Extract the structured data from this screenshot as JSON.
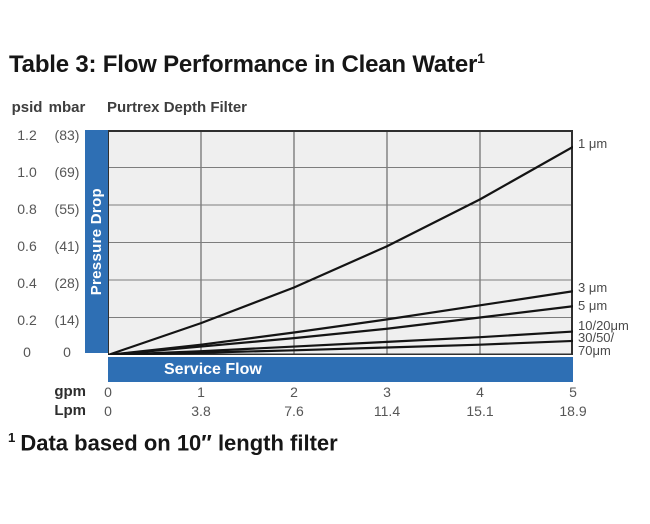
{
  "title": {
    "text": "Table 3: Flow Performance in Clean Water",
    "sup": "1"
  },
  "header": {
    "psid_unit": "psid",
    "mbar_unit": "mbar",
    "chart_name": "Purtrex Depth Filter"
  },
  "labels": {
    "pressure_drop": "Pressure Drop",
    "service_flow": "Service Flow"
  },
  "y_axis": {
    "rows": [
      {
        "psid": "1.2",
        "mbar": "(83)"
      },
      {
        "psid": "1.0",
        "mbar": "(69)"
      },
      {
        "psid": "0.8",
        "mbar": "(55)"
      },
      {
        "psid": "0.6",
        "mbar": "(41)"
      },
      {
        "psid": "0.4",
        "mbar": "(28)"
      },
      {
        "psid": "0.2",
        "mbar": "(14)"
      },
      {
        "psid": "0",
        "mbar": "0"
      }
    ]
  },
  "x_axis": {
    "gpm_label": "gpm",
    "lpm_label": "Lpm",
    "gpm_values": [
      "0",
      "1",
      "2",
      "3",
      "4",
      "5"
    ],
    "lpm_values": [
      "0",
      "3.8",
      "7.6",
      "11.4",
      "15.1",
      "18.9"
    ]
  },
  "curve_labels": [
    {
      "text": "1 μm"
    },
    {
      "text": "3 μm"
    },
    {
      "text": "5 μm"
    },
    {
      "text": "10/20μm"
    },
    {
      "text": "30/50/"
    },
    {
      "text": "70μm"
    }
  ],
  "footnote": {
    "sup": "1",
    "text": "Data based on 10″ length filter"
  },
  "colors": {
    "accent_blue": "#2e6fb4",
    "plot_bg": "#efefef",
    "grid": "#7d7d7d",
    "border": "#2f2f2f",
    "curve": "#141414"
  },
  "chart_data": {
    "type": "line",
    "title": "Purtrex Depth Filter",
    "xlabel": "Service Flow",
    "ylabel": "Pressure Drop",
    "x_units": [
      "gpm",
      "Lpm"
    ],
    "y_units": [
      "psid",
      "mbar"
    ],
    "x_gpm": [
      0,
      1,
      2,
      3,
      4,
      5
    ],
    "x_lpm": [
      0,
      3.8,
      7.6,
      11.4,
      15.1,
      18.9
    ],
    "xlim": [
      0,
      5
    ],
    "ylim": [
      0,
      1.2
    ],
    "y_ticks_psid": [
      0,
      0.2,
      0.4,
      0.6,
      0.8,
      1.0,
      1.2
    ],
    "y_ticks_mbar": [
      0,
      14,
      28,
      41,
      55,
      69,
      83
    ],
    "grid": true,
    "legend_position": "right",
    "series": [
      {
        "name": "1 μm",
        "values": [
          0,
          0.17,
          0.36,
          0.58,
          0.83,
          1.11
        ]
      },
      {
        "name": "3 μm",
        "values": [
          0,
          0.055,
          0.12,
          0.19,
          0.265,
          0.34
        ]
      },
      {
        "name": "5 μm",
        "values": [
          0,
          0.045,
          0.09,
          0.14,
          0.2,
          0.26
        ]
      },
      {
        "name": "10/20 μm",
        "values": [
          0,
          0.02,
          0.045,
          0.07,
          0.095,
          0.125
        ]
      },
      {
        "name": "30/50/70 μm",
        "values": [
          0,
          0.012,
          0.025,
          0.04,
          0.055,
          0.075
        ]
      }
    ]
  }
}
